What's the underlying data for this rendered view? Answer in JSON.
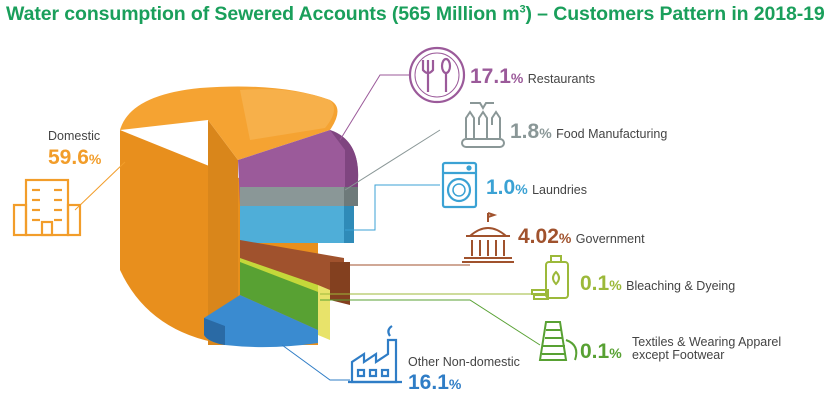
{
  "title_main": "Water consumption of Sewered Accounts (565 Million m",
  "title_sup": "3",
  "title_tail": ") – Customers Pattern in 2018-19",
  "chart_data": {
    "type": "pie",
    "title": "Water consumption of Sewered Accounts (565 Million m³) – Customers Pattern in 2018-19",
    "unit": "%",
    "slices": [
      {
        "label": "Domestic",
        "value": 59.6,
        "display": "59.6",
        "color": "#f29d2a",
        "icon": "apartment-building-icon"
      },
      {
        "label": "Restaurants",
        "value": 17.1,
        "display": "17.1",
        "color": "#9b5a9a",
        "icon": "fork-spoon-plate-icon"
      },
      {
        "label": "Food Manufacturing",
        "value": 1.8,
        "display": "1.8",
        "color": "#8a9797",
        "icon": "bottling-conveyor-icon"
      },
      {
        "label": "Laundries",
        "value": 1.0,
        "display": "1.0",
        "color": "#3ba2d4",
        "icon": "washing-machine-icon"
      },
      {
        "label": "Government",
        "value": 4.02,
        "display": "4.02",
        "color": "#a0522d",
        "icon": "government-building-icon"
      },
      {
        "label": "Bleaching & Dyeing",
        "value": 0.1,
        "display": "0.1",
        "color": "#9cb93a",
        "icon": "detergent-bottle-icon"
      },
      {
        "label": "Textiles & Wearing Apparel except Footwear",
        "label_line1": "Textiles & Wearing Apparel",
        "label_line2": "except Footwear",
        "value": 0.1,
        "display": "0.1",
        "color": "#58a133",
        "icon": "thread-spools-icon"
      },
      {
        "label": "Other Non-domestic",
        "value": 16.1,
        "display": "16.1",
        "color": "#2f7dc6",
        "icon": "factory-icon"
      }
    ]
  },
  "pct_sign": "%"
}
